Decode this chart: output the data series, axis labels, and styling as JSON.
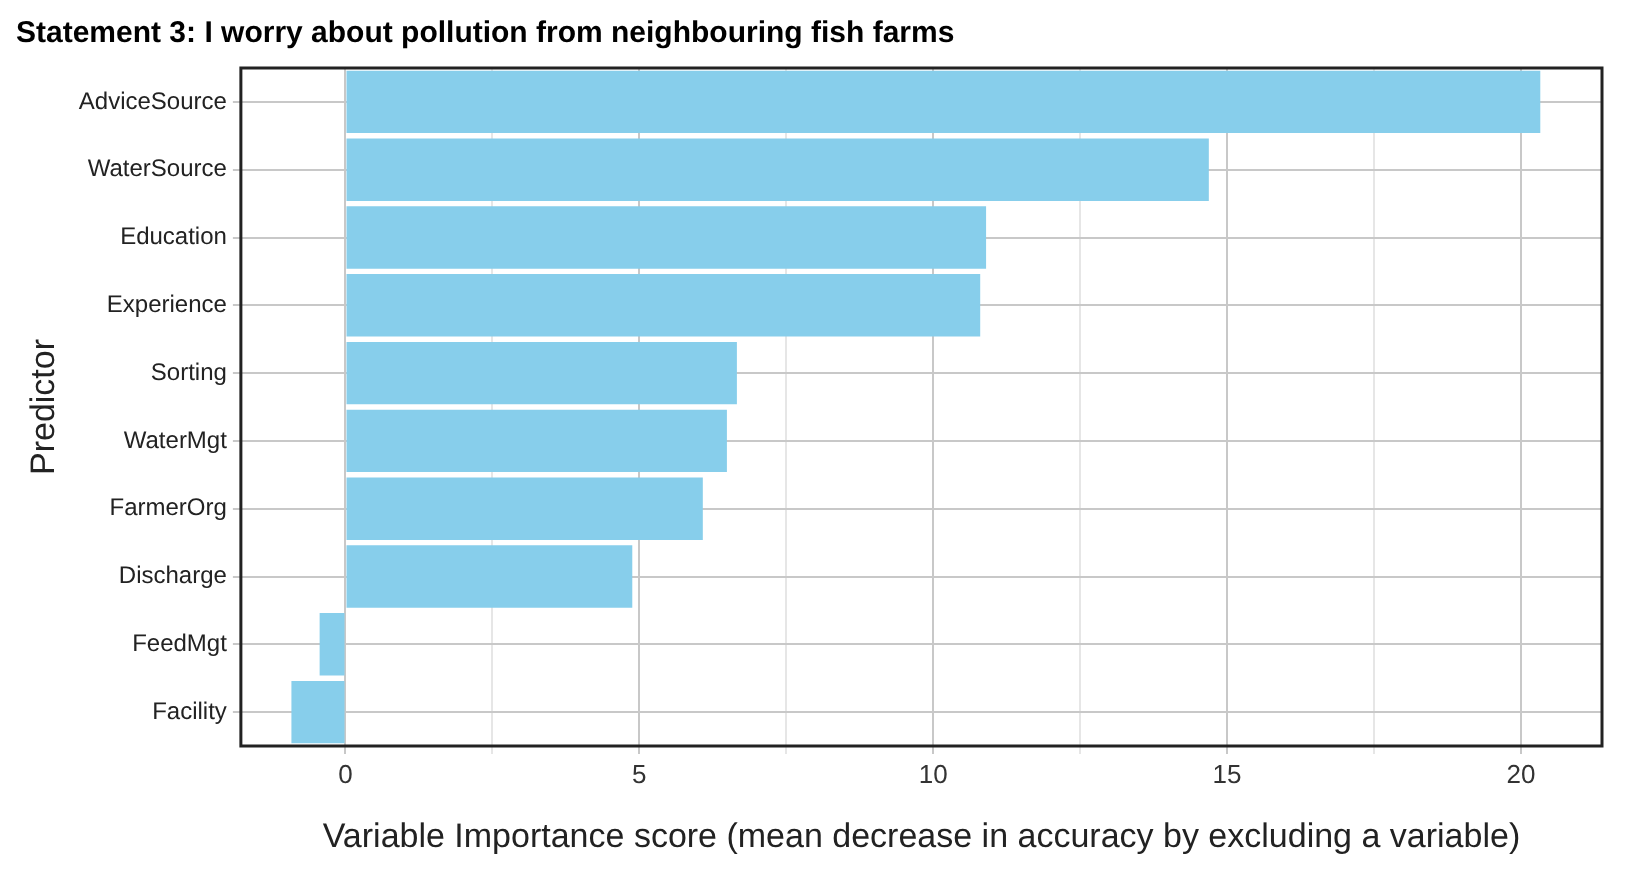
{
  "chart_data": {
    "type": "bar",
    "orientation": "horizontal",
    "title": "Statement 3: I worry about pollution from neighbouring fish farms",
    "xlabel": "Variable Importance score (mean decrease in accuracy by excluding a variable)",
    "ylabel": "Predictor",
    "categories": [
      "AdviceSource",
      "WaterSource",
      "Education",
      "Experience",
      "Sorting",
      "WaterMgt",
      "FarmerOrg",
      "Discharge",
      "FeedMgt",
      "Facility"
    ],
    "values": [
      20.33,
      14.69,
      10.9,
      10.8,
      6.66,
      6.49,
      6.08,
      4.88,
      -0.44,
      -0.92
    ],
    "color": "#87ceeb",
    "xlim": [
      -1.78,
      21.38
    ],
    "xticks": [
      0,
      {
        "value": 2.5,
        "label": null
      },
      5,
      {
        "value": 7.5,
        "label": null
      },
      10,
      {
        "value": 12.5,
        "label": null
      },
      15,
      {
        "value": 17.5,
        "label": null
      },
      20
    ],
    "grid": true,
    "legend": false
  }
}
